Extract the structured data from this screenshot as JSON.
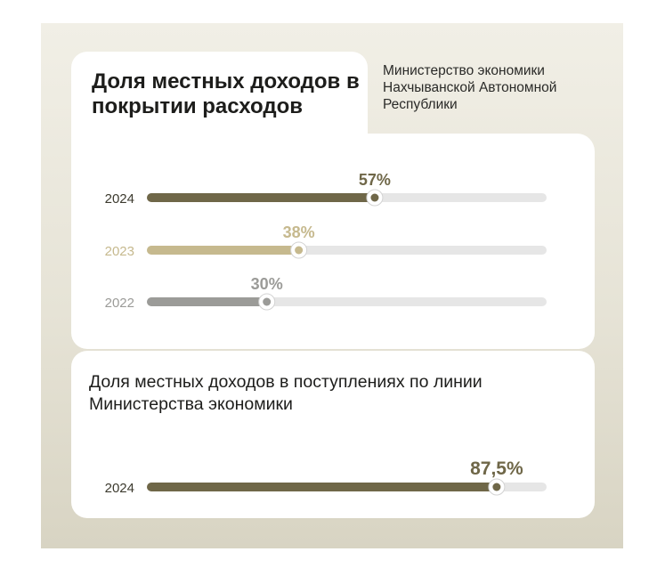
{
  "title": "Доля местных доходов в покрытии расходов",
  "source": "Министерство экономики Нахчыванской Автономной Республики",
  "chart_data": [
    {
      "type": "bar",
      "orientation": "horizontal",
      "title": "Доля местных доходов в покрытии расходов",
      "categories": [
        "2024",
        "2023",
        "2022"
      ],
      "values": [
        57,
        38,
        30
      ],
      "value_labels": [
        "57%",
        "38%",
        "30%"
      ],
      "unit": "%",
      "xlim": [
        0,
        100
      ],
      "colors": [
        "#6f6748",
        "#c6b98e",
        "#9b9b98"
      ],
      "track_color": "#e6e6e6",
      "grid": false
    },
    {
      "type": "bar",
      "orientation": "horizontal",
      "title": "Доля местных доходов в поступлениях по линии Министерства экономики",
      "categories": [
        "2024"
      ],
      "values": [
        87.5
      ],
      "value_labels": [
        "87,5%"
      ],
      "unit": "%",
      "xlim": [
        0,
        100
      ],
      "colors": [
        "#6f6748"
      ],
      "track_color": "#e6e6e6",
      "grid": false
    }
  ]
}
